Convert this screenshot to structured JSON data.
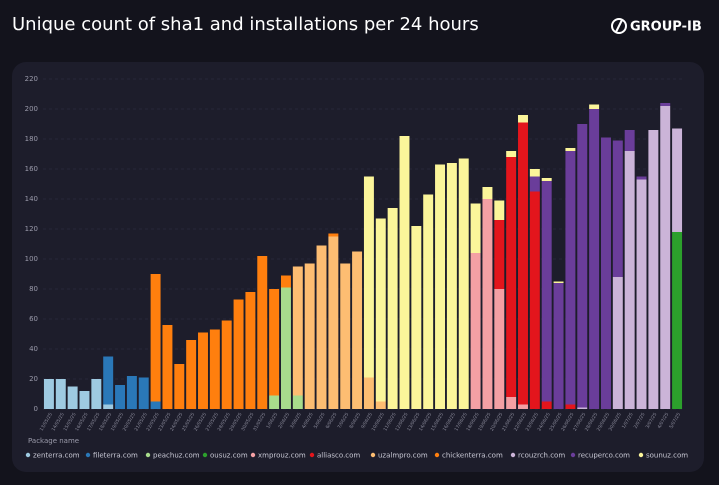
{
  "logo": "GROUP-IB",
  "chart_data": {
    "type": "bar",
    "stacked": true,
    "title": "Unique count of sha1 and installations per 24 hours",
    "legend_title": "Package name",
    "categories": [
      "13/05/25",
      "14/05/25",
      "15/05/25",
      "16/05/25",
      "17/05/25",
      "18/05/25",
      "19/05/25",
      "20/05/25",
      "21/05/25",
      "22/05/25",
      "23/05/25",
      "24/05/25",
      "25/05/25",
      "26/05/25",
      "27/05/25",
      "28/05/25",
      "29/05/25",
      "30/05/25",
      "31/05/25",
      "1/06/25",
      "2/06/25",
      "3/06/25",
      "4/06/25",
      "5/06/25",
      "6/06/25",
      "7/06/25",
      "8/06/25",
      "9/06/25",
      "10/06/25",
      "11/06/25",
      "12/06/25",
      "13/06/25",
      "14/06/25",
      "15/06/25",
      "16/06/25",
      "17/06/25",
      "18/06/25",
      "19/06/25",
      "20/06/25",
      "21/06/25",
      "22/06/25",
      "23/06/25",
      "24/06/25",
      "25/06/25",
      "26/06/25",
      "27/06/25",
      "28/06/25",
      "29/06/25",
      "30/06/25",
      "1/07/25",
      "2/07/25",
      "3/07/25",
      "4/07/25",
      "5/07/25"
    ],
    "series": [
      {
        "name": "zenterra.com",
        "color": "#9ecae1",
        "values": [
          20,
          20,
          15,
          12,
          20,
          3,
          0,
          0,
          0,
          0,
          0,
          0,
          0,
          0,
          0,
          0,
          0,
          0,
          0,
          0,
          0,
          0,
          0,
          0,
          0,
          0,
          0,
          0,
          0,
          0,
          0,
          0,
          0,
          0,
          0,
          0,
          0,
          0,
          0,
          0,
          0,
          0,
          0,
          0,
          0,
          0,
          0,
          0,
          0,
          0,
          0,
          0,
          0,
          0
        ]
      },
      {
        "name": "fileterra.com",
        "color": "#2a78b8",
        "values": [
          0,
          0,
          0,
          0,
          0,
          32,
          16,
          22,
          21,
          5,
          0,
          0,
          0,
          0,
          0,
          0,
          0,
          0,
          0,
          0,
          0,
          0,
          0,
          0,
          0,
          0,
          0,
          0,
          0,
          0,
          0,
          0,
          0,
          0,
          0,
          0,
          0,
          0,
          0,
          0,
          0,
          0,
          0,
          0,
          0,
          0,
          0,
          0,
          0,
          0,
          0,
          0,
          0,
          0
        ]
      },
      {
        "name": "peachuz.com",
        "color": "#a8dc8c",
        "values": [
          0,
          0,
          0,
          0,
          0,
          0,
          0,
          0,
          0,
          0,
          0,
          0,
          0,
          0,
          0,
          0,
          0,
          0,
          0,
          9,
          81,
          9,
          0,
          0,
          0,
          0,
          0,
          0,
          0,
          0,
          0,
          0,
          0,
          0,
          0,
          0,
          0,
          0,
          0,
          0,
          0,
          0,
          0,
          0,
          0,
          0,
          0,
          0,
          0,
          0,
          0,
          0,
          0,
          0
        ]
      },
      {
        "name": "ousuz.com",
        "color": "#2ca02c",
        "values": [
          0,
          0,
          0,
          0,
          0,
          0,
          0,
          0,
          0,
          0,
          0,
          0,
          0,
          0,
          0,
          0,
          0,
          0,
          0,
          0,
          0,
          0,
          0,
          0,
          0,
          0,
          0,
          0,
          0,
          0,
          0,
          0,
          0,
          0,
          0,
          0,
          0,
          0,
          0,
          0,
          0,
          0,
          0,
          0,
          0,
          0,
          0,
          0,
          0,
          0,
          0,
          0,
          0,
          118
        ]
      },
      {
        "name": "xmprouz.com",
        "color": "#f4a0a4",
        "values": [
          0,
          0,
          0,
          0,
          0,
          0,
          0,
          0,
          0,
          0,
          0,
          0,
          0,
          0,
          0,
          0,
          0,
          0,
          0,
          0,
          0,
          0,
          0,
          0,
          0,
          0,
          0,
          0,
          0,
          0,
          0,
          0,
          0,
          0,
          0,
          0,
          104,
          140,
          80,
          8,
          3,
          0,
          0,
          0,
          0,
          0,
          0,
          0,
          0,
          0,
          0,
          0,
          0,
          0
        ]
      },
      {
        "name": "alliasco.com",
        "color": "#e3151c",
        "values": [
          0,
          0,
          0,
          0,
          0,
          0,
          0,
          0,
          0,
          0,
          0,
          0,
          0,
          0,
          0,
          0,
          0,
          0,
          0,
          0,
          0,
          0,
          0,
          0,
          0,
          0,
          0,
          0,
          0,
          0,
          0,
          0,
          0,
          0,
          0,
          0,
          0,
          0,
          46,
          160,
          188,
          145,
          5,
          0,
          3,
          0,
          0,
          0,
          0,
          0,
          0,
          0,
          0,
          0
        ]
      },
      {
        "name": "uzalmpro.com",
        "color": "#fdbd72",
        "values": [
          0,
          0,
          0,
          0,
          0,
          0,
          0,
          0,
          0,
          0,
          0,
          0,
          0,
          0,
          0,
          0,
          0,
          0,
          0,
          0,
          0,
          86,
          97,
          109,
          115,
          97,
          105,
          21,
          5,
          0,
          0,
          0,
          0,
          0,
          0,
          0,
          0,
          0,
          0,
          0,
          0,
          0,
          0,
          0,
          0,
          0,
          0,
          0,
          0,
          0,
          0,
          0,
          0,
          0
        ]
      },
      {
        "name": "chickenterra.com",
        "color": "#ff7f0e",
        "values": [
          0,
          0,
          0,
          0,
          0,
          0,
          0,
          0,
          0,
          85,
          56,
          30,
          46,
          51,
          53,
          59,
          73,
          78,
          102,
          71,
          8,
          0,
          0,
          0,
          2,
          0,
          0,
          0,
          0,
          0,
          0,
          0,
          0,
          0,
          0,
          0,
          0,
          0,
          0,
          0,
          0,
          0,
          0,
          0,
          0,
          0,
          0,
          0,
          0,
          0,
          0,
          0,
          0,
          0
        ]
      },
      {
        "name": "rcouzrch.com",
        "color": "#cbb4d8",
        "values": [
          0,
          0,
          0,
          0,
          0,
          0,
          0,
          0,
          0,
          0,
          0,
          0,
          0,
          0,
          0,
          0,
          0,
          0,
          0,
          0,
          0,
          0,
          0,
          0,
          0,
          0,
          0,
          0,
          0,
          0,
          0,
          0,
          0,
          0,
          0,
          0,
          0,
          0,
          0,
          0,
          0,
          0,
          0,
          0,
          0,
          1,
          0,
          0,
          88,
          172,
          153,
          186,
          202,
          69
        ]
      },
      {
        "name": "recuperco.com",
        "color": "#6a3d9a",
        "values": [
          0,
          0,
          0,
          0,
          0,
          0,
          0,
          0,
          0,
          0,
          0,
          0,
          0,
          0,
          0,
          0,
          0,
          0,
          0,
          0,
          0,
          0,
          0,
          0,
          0,
          0,
          0,
          0,
          0,
          0,
          0,
          0,
          0,
          0,
          0,
          0,
          0,
          0,
          0,
          0,
          0,
          10,
          147,
          84,
          169,
          189,
          200,
          181,
          91,
          14,
          2,
          0,
          2,
          0
        ]
      },
      {
        "name": "sounuz.com",
        "color": "#fbf59a",
        "values": [
          0,
          0,
          0,
          0,
          0,
          0,
          0,
          0,
          0,
          0,
          0,
          0,
          0,
          0,
          0,
          0,
          0,
          0,
          0,
          0,
          0,
          0,
          0,
          0,
          0,
          0,
          0,
          134,
          122,
          134,
          182,
          122,
          143,
          163,
          164,
          167,
          33,
          8,
          13,
          4,
          5,
          5,
          2,
          1,
          2,
          0,
          3,
          0,
          0,
          0,
          0,
          0,
          0,
          0
        ]
      }
    ],
    "ylim": [
      0,
      220
    ],
    "yticks": [
      0,
      20,
      40,
      60,
      80,
      100,
      120,
      140,
      160,
      180,
      200,
      220
    ],
    "grid": true
  }
}
